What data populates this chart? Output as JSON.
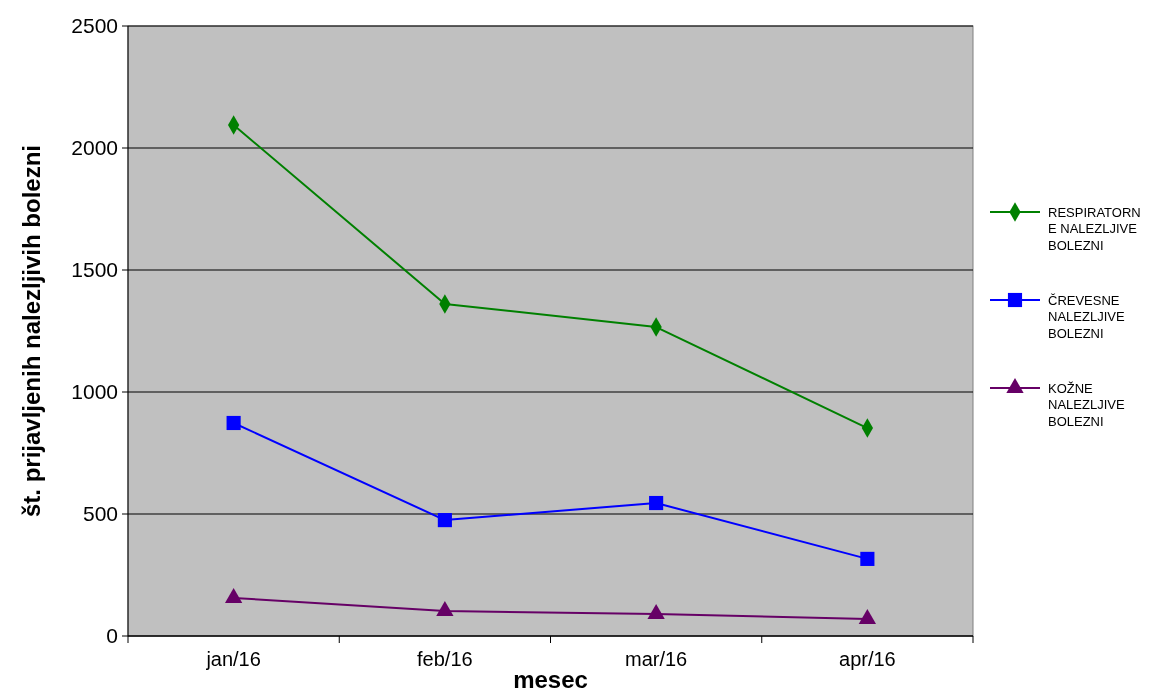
{
  "chart_data": {
    "type": "line",
    "xlabel": "mesec",
    "ylabel": "št. prijavljenih nalezljivih bolezni",
    "categories": [
      "jan/16",
      "feb/16",
      "mar/16",
      "apr/16"
    ],
    "series": [
      {
        "name": "RESPIRATORNE NALEZLJIVE BOLEZNI",
        "color": "#008000",
        "marker": "diamond",
        "values": [
          2094,
          1361,
          1266,
          852
        ]
      },
      {
        "name": "ČREVESNE NALEZLJIVE BOLEZNI",
        "color": "#0000ff",
        "marker": "square",
        "values": [
          873,
          475,
          545,
          316
        ]
      },
      {
        "name": "KOŽNE NALEZLJIVE BOLEZNI",
        "color": "#660066",
        "marker": "triangle",
        "values": [
          156,
          102,
          90,
          70
        ]
      }
    ],
    "ylim": [
      0,
      2500
    ],
    "yticks": [
      0,
      500,
      1000,
      1500,
      2000,
      2500
    ],
    "grid": "y",
    "legend": "right"
  }
}
